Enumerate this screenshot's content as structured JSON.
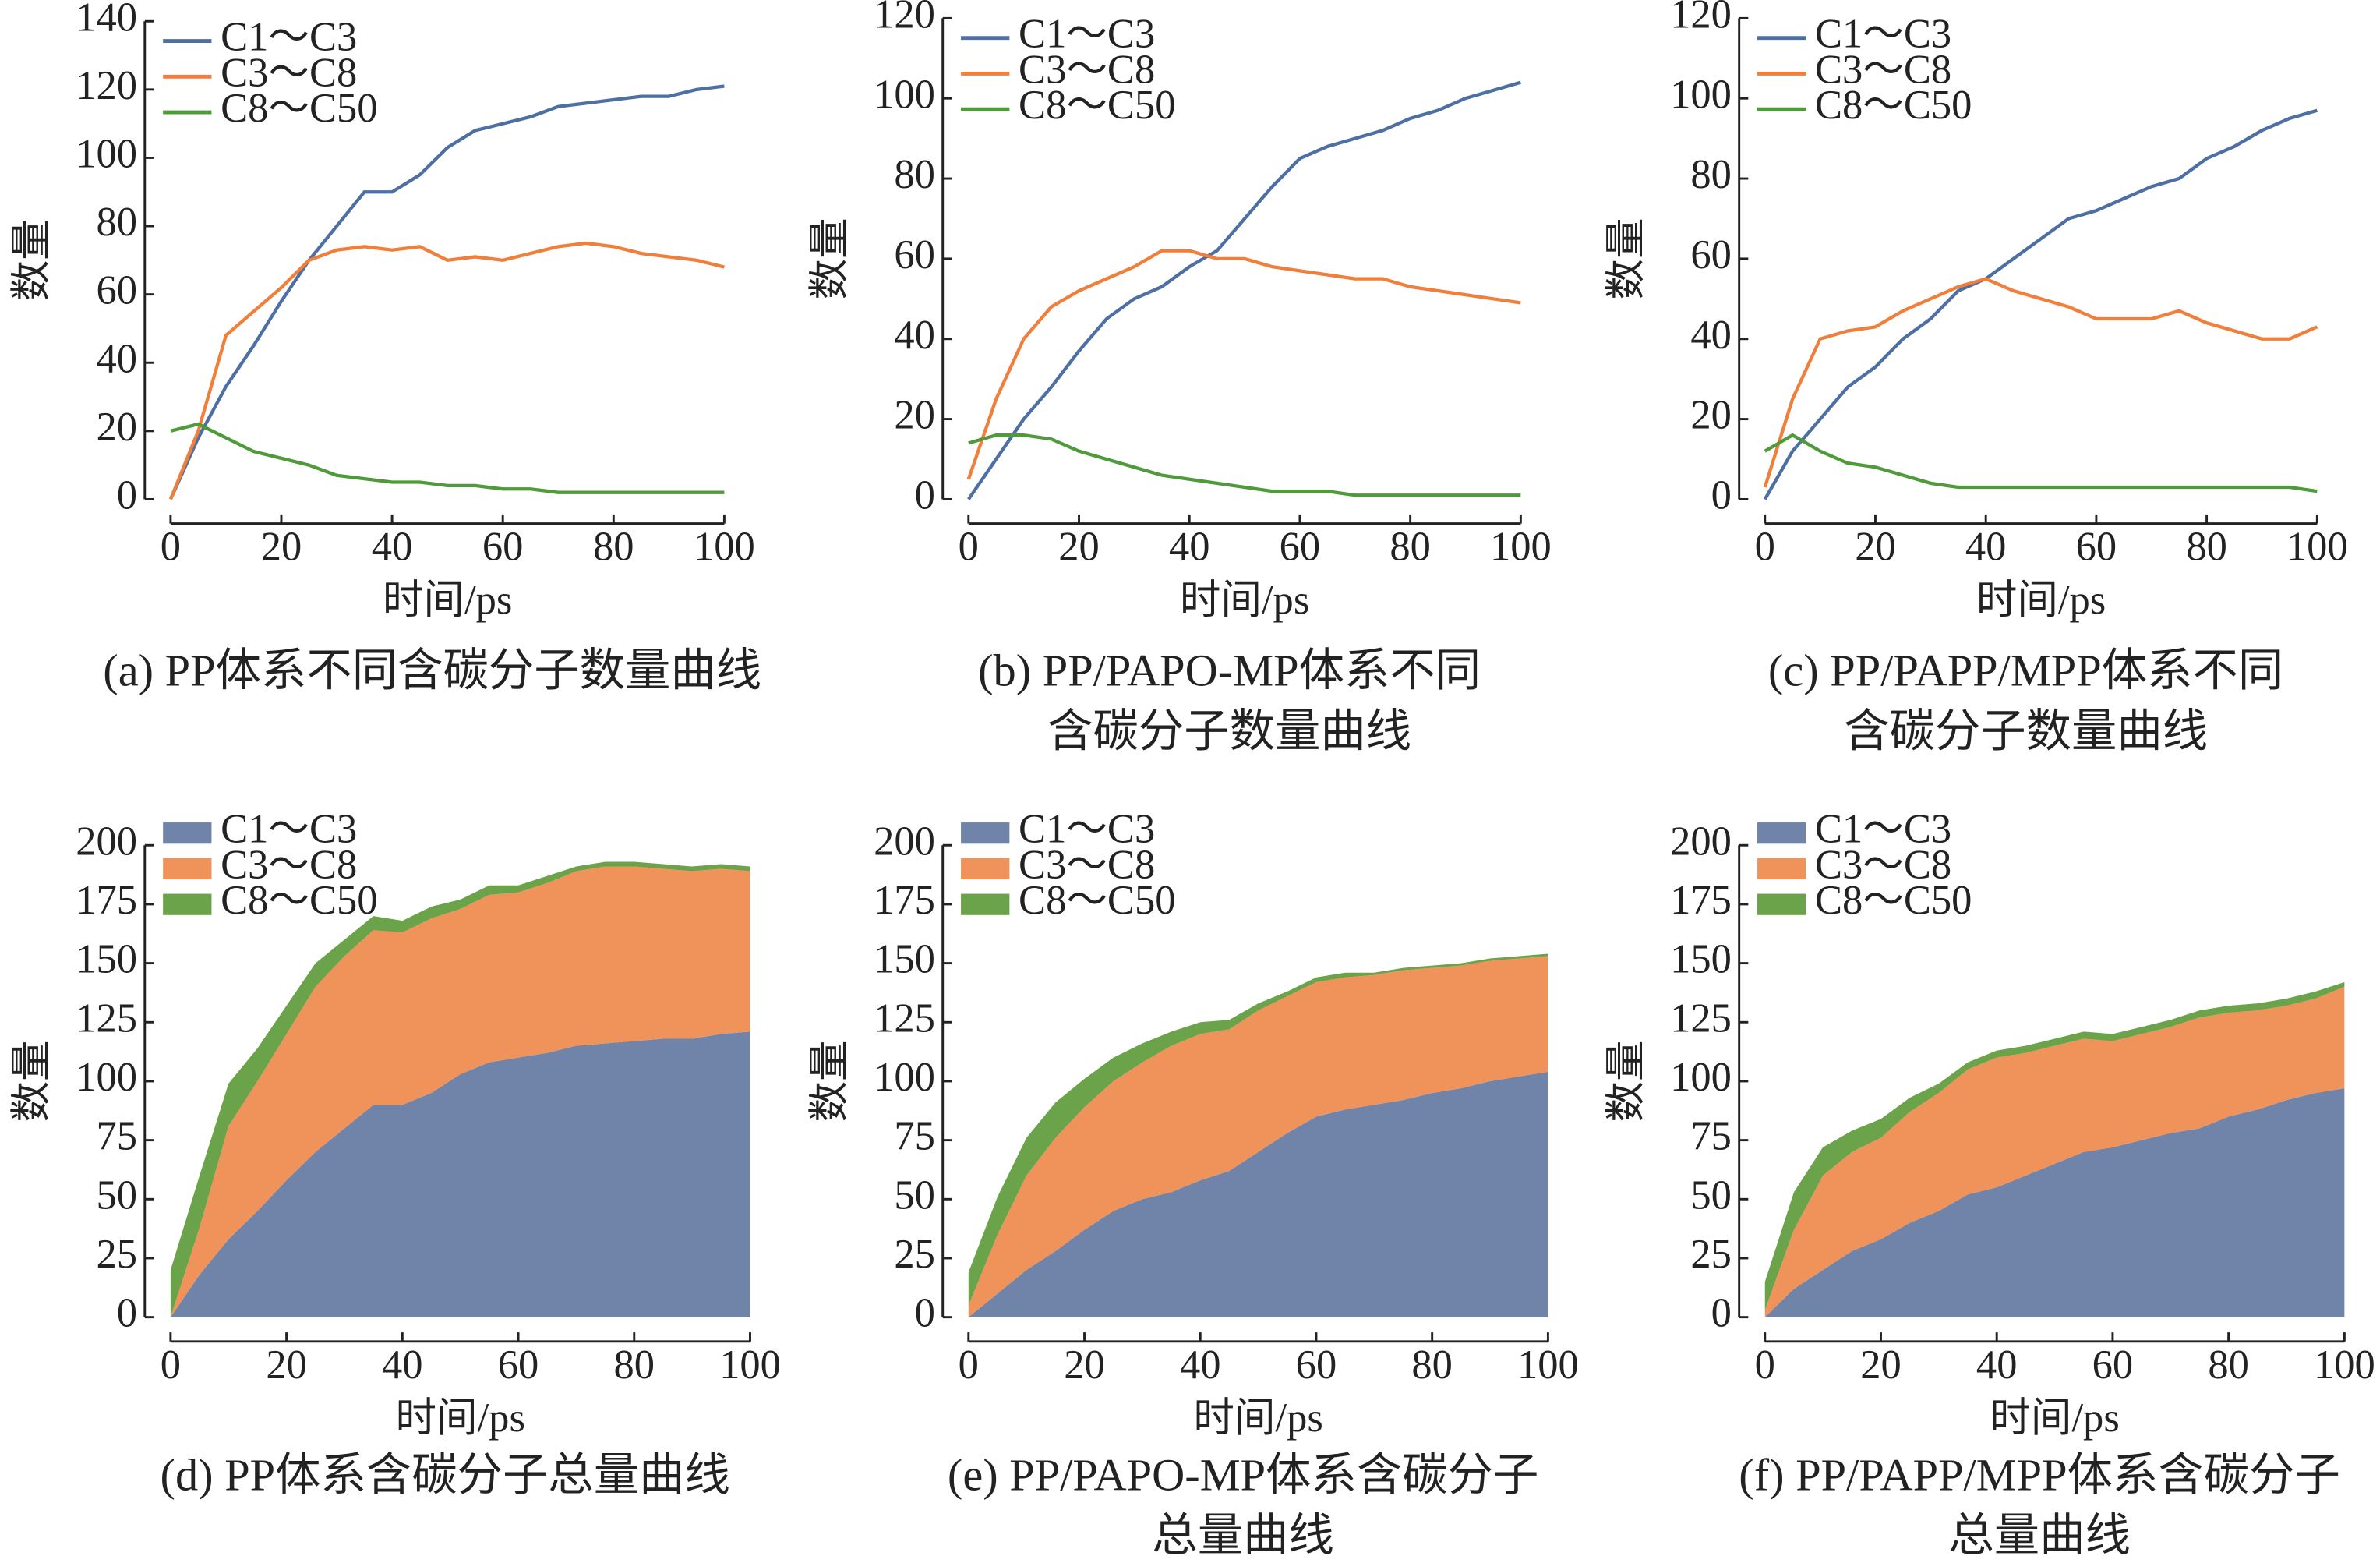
{
  "chart_data": [
    {
      "type": "line",
      "title": [
        "(a) PP体系不同含碳分子数量曲线"
      ],
      "xlabel": "时间/ps",
      "ylabel": "数量",
      "legend": "upper left",
      "x": [
        0,
        5,
        10,
        15,
        20,
        25,
        30,
        35,
        40,
        45,
        50,
        55,
        60,
        65,
        70,
        75,
        80,
        85,
        90,
        95,
        100
      ],
      "series": [
        {
          "name": "C1～C3",
          "color": "#4e6fa3",
          "values": [
            0,
            18,
            33,
            45,
            58,
            70,
            80,
            90,
            90,
            95,
            103,
            108,
            110,
            112,
            115,
            116,
            117,
            118,
            118,
            120,
            121
          ]
        },
        {
          "name": "C3～C8",
          "color": "#f07f3c",
          "values": [
            0,
            20,
            48,
            55,
            62,
            70,
            73,
            74,
            73,
            74,
            70,
            71,
            70,
            72,
            74,
            75,
            74,
            72,
            71,
            70,
            68
          ]
        },
        {
          "name": "C8～C50",
          "color": "#4f9a3a",
          "values": [
            20,
            22,
            18,
            14,
            12,
            10,
            7,
            6,
            5,
            5,
            4,
            4,
            3,
            3,
            2,
            2,
            2,
            2,
            2,
            2,
            2
          ]
        }
      ],
      "xlim": [
        0,
        100
      ],
      "xticks": [
        0,
        20,
        40,
        60,
        80,
        100
      ],
      "ylim": [
        0,
        140
      ],
      "yticks": [
        0,
        20,
        40,
        60,
        80,
        100,
        120,
        140
      ]
    },
    {
      "type": "line",
      "title": [
        "(b) PP/PAPO-MP体系不同",
        "含碳分子数量曲线"
      ],
      "xlabel": "时间/ps",
      "ylabel": "数量",
      "legend": "upper left",
      "x": [
        0,
        5,
        10,
        15,
        20,
        25,
        30,
        35,
        40,
        45,
        50,
        55,
        60,
        65,
        70,
        75,
        80,
        85,
        90,
        95,
        100
      ],
      "series": [
        {
          "name": "C1～C3",
          "color": "#4e6fa3",
          "values": [
            0,
            10,
            20,
            28,
            37,
            45,
            50,
            53,
            58,
            62,
            70,
            78,
            85,
            88,
            90,
            92,
            95,
            97,
            100,
            102,
            104
          ]
        },
        {
          "name": "C3～C8",
          "color": "#f07f3c",
          "values": [
            5,
            25,
            40,
            48,
            52,
            55,
            58,
            62,
            62,
            60,
            60,
            58,
            57,
            56,
            55,
            55,
            53,
            52,
            51,
            50,
            49
          ]
        },
        {
          "name": "C8～C50",
          "color": "#4f9a3a",
          "values": [
            14,
            16,
            16,
            15,
            12,
            10,
            8,
            6,
            5,
            4,
            3,
            2,
            2,
            2,
            1,
            1,
            1,
            1,
            1,
            1,
            1
          ]
        }
      ],
      "xlim": [
        0,
        100
      ],
      "xticks": [
        0,
        20,
        40,
        60,
        80,
        100
      ],
      "ylim": [
        0,
        120
      ],
      "yticks": [
        0,
        20,
        40,
        60,
        80,
        100,
        120
      ]
    },
    {
      "type": "line",
      "title": [
        "(c) PP/PAPP/MPP体系不同",
        "含碳分子数量曲线"
      ],
      "xlabel": "时间/ps",
      "ylabel": "数量",
      "legend": "upper left",
      "x": [
        0,
        5,
        10,
        15,
        20,
        25,
        30,
        35,
        40,
        45,
        50,
        55,
        60,
        65,
        70,
        75,
        80,
        85,
        90,
        95,
        100
      ],
      "series": [
        {
          "name": "C1～C3",
          "color": "#4e6fa3",
          "values": [
            0,
            12,
            20,
            28,
            33,
            40,
            45,
            52,
            55,
            60,
            65,
            70,
            72,
            75,
            78,
            80,
            85,
            88,
            92,
            95,
            97
          ]
        },
        {
          "name": "C3～C8",
          "color": "#f07f3c",
          "values": [
            3,
            25,
            40,
            42,
            43,
            47,
            50,
            53,
            55,
            52,
            50,
            48,
            45,
            45,
            45,
            47,
            44,
            42,
            40,
            40,
            43
          ]
        },
        {
          "name": "C8～C50",
          "color": "#4f9a3a",
          "values": [
            12,
            16,
            12,
            9,
            8,
            6,
            4,
            3,
            3,
            3,
            3,
            3,
            3,
            3,
            3,
            3,
            3,
            3,
            3,
            3,
            2
          ]
        }
      ],
      "xlim": [
        0,
        100
      ],
      "xticks": [
        0,
        20,
        40,
        60,
        80,
        100
      ],
      "ylim": [
        0,
        120
      ],
      "yticks": [
        0,
        20,
        40,
        60,
        80,
        100,
        120
      ]
    },
    {
      "type": "area",
      "title": [
        "(d) PP体系含碳分子总量曲线"
      ],
      "xlabel": "时间/ps",
      "ylabel": "数量",
      "legend": "upper left",
      "x": [
        0,
        5,
        10,
        15,
        20,
        25,
        30,
        35,
        40,
        45,
        50,
        55,
        60,
        65,
        70,
        75,
        80,
        85,
        90,
        95,
        100
      ],
      "series": [
        {
          "name": "C1～C3",
          "color": "#6f84a8",
          "values": [
            0,
            18,
            33,
            45,
            58,
            70,
            80,
            90,
            90,
            95,
            103,
            108,
            110,
            112,
            115,
            116,
            117,
            118,
            118,
            120,
            121
          ]
        },
        {
          "name": "C3～C8",
          "color": "#f0935a",
          "values": [
            0,
            20,
            48,
            55,
            62,
            70,
            73,
            74,
            73,
            74,
            70,
            71,
            70,
            72,
            74,
            75,
            74,
            72,
            71,
            70,
            68
          ]
        },
        {
          "name": "C8～C50",
          "color": "#6aa34a",
          "values": [
            20,
            22,
            18,
            14,
            12,
            10,
            7,
            6,
            5,
            5,
            4,
            4,
            3,
            3,
            2,
            2,
            2,
            2,
            2,
            2,
            2
          ]
        }
      ],
      "xlim": [
        0,
        100
      ],
      "xticks": [
        0,
        20,
        40,
        60,
        80,
        100
      ],
      "ylim": [
        0,
        200
      ],
      "yticks": [
        0,
        25,
        50,
        75,
        100,
        125,
        150,
        175,
        200
      ]
    },
    {
      "type": "area",
      "title": [
        "(e) PP/PAPO-MP体系含碳分子",
        "总量曲线"
      ],
      "xlabel": "时间/ps",
      "ylabel": "数量",
      "legend": "upper left",
      "x": [
        0,
        5,
        10,
        15,
        20,
        25,
        30,
        35,
        40,
        45,
        50,
        55,
        60,
        65,
        70,
        75,
        80,
        85,
        90,
        95,
        100
      ],
      "series": [
        {
          "name": "C1～C3",
          "color": "#6f84a8",
          "values": [
            0,
            10,
            20,
            28,
            37,
            45,
            50,
            53,
            58,
            62,
            70,
            78,
            85,
            88,
            90,
            92,
            95,
            97,
            100,
            102,
            104
          ]
        },
        {
          "name": "C3～C8",
          "color": "#f0935a",
          "values": [
            5,
            25,
            40,
            48,
            52,
            55,
            58,
            62,
            62,
            60,
            60,
            58,
            57,
            56,
            55,
            55,
            53,
            52,
            51,
            50,
            49
          ]
        },
        {
          "name": "C8～C50",
          "color": "#6aa34a",
          "values": [
            14,
            16,
            16,
            15,
            12,
            10,
            8,
            6,
            5,
            4,
            3,
            2,
            2,
            2,
            1,
            1,
            1,
            1,
            1,
            1,
            1
          ]
        }
      ],
      "xlim": [
        0,
        100
      ],
      "xticks": [
        0,
        20,
        40,
        60,
        80,
        100
      ],
      "ylim": [
        0,
        200
      ],
      "yticks": [
        0,
        25,
        50,
        75,
        100,
        125,
        150,
        175,
        200
      ]
    },
    {
      "type": "area",
      "title": [
        "(f) PP/PAPP/MPP体系含碳分子",
        "总量曲线"
      ],
      "xlabel": "时间/ps",
      "ylabel": "数量",
      "legend": "upper left",
      "x": [
        0,
        5,
        10,
        15,
        20,
        25,
        30,
        35,
        40,
        45,
        50,
        55,
        60,
        65,
        70,
        75,
        80,
        85,
        90,
        95,
        100
      ],
      "series": [
        {
          "name": "C1～C3",
          "color": "#6f84a8",
          "values": [
            0,
            12,
            20,
            28,
            33,
            40,
            45,
            52,
            55,
            60,
            65,
            70,
            72,
            75,
            78,
            80,
            85,
            88,
            92,
            95,
            97
          ]
        },
        {
          "name": "C3～C8",
          "color": "#f0935a",
          "values": [
            3,
            25,
            40,
            42,
            43,
            47,
            50,
            53,
            55,
            52,
            50,
            48,
            45,
            45,
            45,
            47,
            44,
            42,
            40,
            40,
            43
          ]
        },
        {
          "name": "C8～C50",
          "color": "#6aa34a",
          "values": [
            12,
            16,
            12,
            9,
            8,
            6,
            4,
            3,
            3,
            3,
            3,
            3,
            3,
            3,
            3,
            3,
            3,
            3,
            3,
            3,
            2
          ]
        }
      ],
      "xlim": [
        0,
        100
      ],
      "xticks": [
        0,
        20,
        40,
        60,
        80,
        100
      ],
      "ylim": [
        0,
        200
      ],
      "yticks": [
        0,
        25,
        50,
        75,
        100,
        125,
        150,
        175,
        200
      ]
    }
  ]
}
